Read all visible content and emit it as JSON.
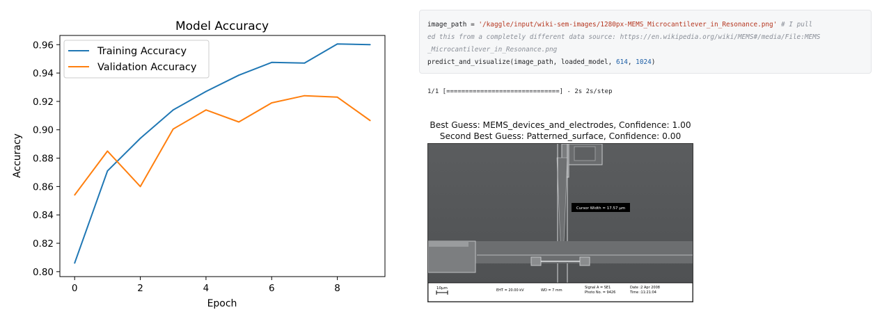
{
  "chart_data": {
    "type": "line",
    "title": "Model Accuracy",
    "xlabel": "Epoch",
    "ylabel": "Accuracy",
    "x": [
      0,
      1,
      2,
      3,
      4,
      5,
      6,
      7,
      8,
      9
    ],
    "xlim": [
      -0.45,
      9.45
    ],
    "ylim": [
      0.7965,
      0.9665
    ],
    "xticks": [
      0,
      2,
      4,
      6,
      8
    ],
    "yticks": [
      0.8,
      0.82,
      0.84,
      0.86,
      0.88,
      0.9,
      0.92,
      0.94,
      0.96
    ],
    "grid": false,
    "legend_position": "upper left",
    "series": [
      {
        "name": "Training Accuracy",
        "color": "#1f77b4",
        "values": [
          0.806,
          0.871,
          0.894,
          0.914,
          0.927,
          0.9385,
          0.9475,
          0.947,
          0.9605,
          0.96
        ]
      },
      {
        "name": "Validation Accuracy",
        "color": "#ff7f0e",
        "values": [
          0.854,
          0.885,
          0.86,
          0.9005,
          0.914,
          0.9055,
          0.919,
          0.924,
          0.923,
          0.9065
        ]
      }
    ]
  },
  "code_cell": {
    "line1_a": "image_path = ",
    "line1_str": "'/kaggle/input/wiki-sem-images/1280px-MEMS_Microcantilever_in_Resonance.png'",
    "line1_com": " # I pull",
    "line2_com": "ed this from a completely different data source: https://en.wikipedia.org/wiki/MEMS#/media/File:MEMS",
    "line3_com": "_Microcantilever_in_Resonance.png",
    "line4_a": "predict_and_visualize(image_path, loaded_model, ",
    "line4_n1": "614",
    "line4_b": ", ",
    "line4_n2": "1024",
    "line4_c": ")"
  },
  "output": {
    "progress_line": "1/1 [==============================] - 2s 2s/step"
  },
  "prediction": {
    "best_guess": "Best Guess: MEMS_devices_and_electrodes, Confidence: 1.00",
    "second_guess": "Second Best Guess: Patterned_surface, Confidence: 0.00"
  },
  "sem_image": {
    "cursor_label": "Cursor Width = 17.57 µm",
    "scale_label": "10µm",
    "eht": "EHT = 20.00 kV",
    "wd": "WD =    7 mm",
    "signal": "Signal A = SE1",
    "photo_no": "Photo No. = 9426",
    "date": "Date :2 Apr 2008",
    "time": "Time :11:21:04"
  }
}
